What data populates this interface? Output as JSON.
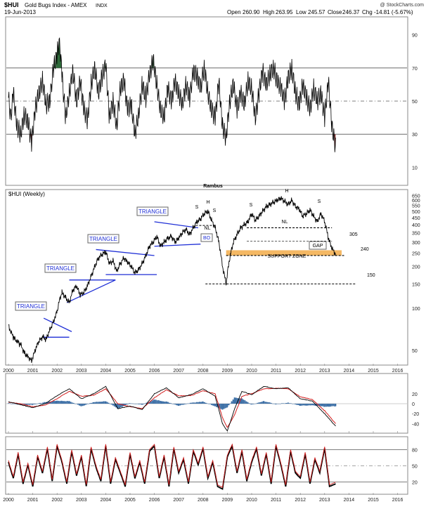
{
  "header": {
    "symbol": "$HUI",
    "name": "Gold Bugs Index - AMEX",
    "suffix": "INDX",
    "date": "19-Jun-2013",
    "watermark": "@ StockCharts.com",
    "open_label": "Open",
    "open": "260.90",
    "high_label": "High",
    "high": "263.95",
    "low_label": "Low",
    "low": "245.57",
    "close_label": "Close",
    "close": "246.37",
    "chg_label": "Chg",
    "chg": "-14.81 (-5.67%)"
  },
  "colors": {
    "price": "#000000",
    "pattern": "#1f2fd6",
    "support": "#f0a030",
    "macd_signal": "#d21f1f",
    "histogram": "#3b6ea5",
    "overbought_fill": "#2e6b3a",
    "oversold_fill": "#8b3a3a",
    "panel_border": "#8a8a8a",
    "ref_line": "#555555"
  },
  "chart_data": [
    {
      "type": "line",
      "panel": "RSI",
      "title": "",
      "ylim": [
        0,
        100
      ],
      "yticks": [
        10,
        30,
        50,
        70,
        90
      ],
      "ref_lines": [
        30,
        50,
        70
      ],
      "x_start": 2000.0,
      "x_end": 2013.45,
      "series": [
        {
          "x": [
            2000.0,
            2000.1,
            2000.2,
            2000.35,
            2000.5,
            2000.65,
            2000.8,
            2000.95,
            2001.1,
            2001.25,
            2001.4,
            2001.55,
            2001.7,
            2001.85,
            2002.0,
            2002.1,
            2002.2,
            2002.35,
            2002.5,
            2002.65,
            2002.8,
            2002.95,
            2003.1,
            2003.25,
            2003.4,
            2003.55,
            2003.7,
            2003.85,
            2004.0,
            2004.15,
            2004.3,
            2004.45,
            2004.6,
            2004.75,
            2004.9,
            2005.05,
            2005.2,
            2005.35,
            2005.5,
            2005.65,
            2005.8,
            2005.95,
            2006.1,
            2006.25,
            2006.4,
            2006.55,
            2006.7,
            2006.85,
            2007.0,
            2007.15,
            2007.3,
            2007.45,
            2007.6,
            2007.75,
            2007.9,
            2008.05,
            2008.2,
            2008.35,
            2008.5,
            2008.65,
            2008.8,
            2008.95,
            2009.1,
            2009.25,
            2009.4,
            2009.55,
            2009.7,
            2009.85,
            2010.0,
            2010.15,
            2010.3,
            2010.45,
            2010.6,
            2010.75,
            2010.9,
            2011.05,
            2011.2,
            2011.35,
            2011.5,
            2011.65,
            2011.8,
            2011.95,
            2012.1,
            2012.25,
            2012.4,
            2012.55,
            2012.7,
            2012.85,
            2013.0,
            2013.15,
            2013.3,
            2013.45
          ],
          "y": [
            52,
            40,
            55,
            35,
            30,
            42,
            38,
            25,
            45,
            55,
            62,
            48,
            50,
            70,
            78,
            88,
            66,
            40,
            55,
            68,
            50,
            62,
            45,
            38,
            60,
            70,
            55,
            65,
            72,
            40,
            50,
            35,
            58,
            62,
            45,
            48,
            30,
            42,
            60,
            52,
            66,
            75,
            60,
            45,
            40,
            58,
            50,
            62,
            55,
            48,
            60,
            52,
            68,
            65,
            58,
            70,
            55,
            45,
            40,
            62,
            35,
            28,
            50,
            60,
            45,
            55,
            48,
            62,
            58,
            40,
            55,
            68,
            60,
            66,
            70,
            62,
            58,
            50,
            64,
            70,
            55,
            48,
            60,
            52,
            45,
            58,
            50,
            55,
            40,
            62,
            35,
            22
          ]
        }
      ]
    },
    {
      "type": "line",
      "panel": "Price",
      "title": "$HUI (Weekly)",
      "yscale": "log",
      "ylim": [
        40,
        660
      ],
      "yticks": [
        50,
        100,
        150,
        200,
        250,
        300,
        350,
        400,
        450,
        500,
        550,
        600,
        650
      ],
      "x_start": 2000.0,
      "x_end": 2013.45,
      "xticks": [
        "2000",
        "2001",
        "2002",
        "2003",
        "2004",
        "2005",
        "2006",
        "2007",
        "2008",
        "2009",
        "2010",
        "2011",
        "2012",
        "2013",
        "2014",
        "2015",
        "2016"
      ],
      "series": [
        {
          "name": "HUI",
          "x": [
            2000.0,
            2000.1,
            2000.2,
            2000.35,
            2000.5,
            2000.65,
            2000.8,
            2000.95,
            2001.1,
            2001.25,
            2001.4,
            2001.55,
            2001.7,
            2001.85,
            2002.0,
            2002.1,
            2002.2,
            2002.35,
            2002.5,
            2002.65,
            2002.8,
            2002.95,
            2003.1,
            2003.25,
            2003.4,
            2003.55,
            2003.7,
            2003.85,
            2004.0,
            2004.15,
            2004.3,
            2004.45,
            2004.6,
            2004.75,
            2004.9,
            2005.05,
            2005.2,
            2005.35,
            2005.5,
            2005.65,
            2005.8,
            2005.95,
            2006.1,
            2006.25,
            2006.4,
            2006.55,
            2006.7,
            2006.85,
            2007.0,
            2007.15,
            2007.3,
            2007.45,
            2007.6,
            2007.75,
            2007.9,
            2008.05,
            2008.2,
            2008.35,
            2008.5,
            2008.65,
            2008.8,
            2008.95,
            2009.1,
            2009.25,
            2009.4,
            2009.55,
            2009.7,
            2009.85,
            2010.0,
            2010.15,
            2010.3,
            2010.45,
            2010.6,
            2010.75,
            2010.9,
            2011.05,
            2011.2,
            2011.35,
            2011.5,
            2011.65,
            2011.8,
            2011.95,
            2012.1,
            2012.25,
            2012.4,
            2012.55,
            2012.7,
            2012.85,
            2013.0,
            2013.15,
            2013.3,
            2013.45
          ],
          "y": [
            75,
            68,
            62,
            58,
            55,
            48,
            45,
            42,
            50,
            58,
            62,
            60,
            70,
            80,
            95,
            115,
            130,
            120,
            110,
            135,
            145,
            125,
            130,
            145,
            170,
            200,
            230,
            245,
            255,
            210,
            220,
            185,
            210,
            230,
            215,
            200,
            180,
            190,
            210,
            240,
            280,
            300,
            330,
            280,
            300,
            320,
            330,
            300,
            320,
            350,
            370,
            340,
            380,
            420,
            440,
            480,
            500,
            430,
            380,
            300,
            200,
            150,
            230,
            300,
            340,
            380,
            400,
            420,
            480,
            430,
            460,
            500,
            540,
            560,
            580,
            600,
            620,
            590,
            560,
            600,
            540,
            520,
            460,
            480,
            510,
            460,
            420,
            480,
            420,
            320,
            270,
            246
          ]
        }
      ],
      "annotations": [
        {
          "text": "TRIANGLE",
          "kind": "box"
        },
        {
          "text": "TRIANGLE",
          "kind": "box"
        },
        {
          "text": "TRIANGLE",
          "kind": "box"
        },
        {
          "text": "TRIANGLE",
          "kind": "box"
        },
        {
          "text": "H",
          "kind": "label"
        },
        {
          "text": "S",
          "kind": "label"
        },
        {
          "text": "S",
          "kind": "label"
        },
        {
          "text": "NL",
          "kind": "label"
        },
        {
          "text": "BO",
          "kind": "box"
        },
        {
          "text": "S",
          "kind": "label"
        },
        {
          "text": "H",
          "kind": "label"
        },
        {
          "text": "S",
          "kind": "label"
        },
        {
          "text": "NL",
          "kind": "label"
        },
        {
          "text": "305",
          "kind": "label"
        },
        {
          "text": "GAP",
          "kind": "box"
        },
        {
          "text": "240",
          "kind": "label"
        },
        {
          "text": "SUPPORT ZONE",
          "kind": "label"
        },
        {
          "text": "150",
          "kind": "label"
        },
        {
          "text": "Rambus",
          "kind": "label"
        }
      ],
      "levels": [
        {
          "value": 380,
          "label": "NL"
        },
        {
          "value": 305,
          "label": "305"
        },
        {
          "value": 240,
          "label": "240"
        },
        {
          "value": 150,
          "label": "150"
        }
      ]
    },
    {
      "type": "line",
      "panel": "MACD",
      "title": "",
      "ylim": [
        -55,
        55
      ],
      "yticks": [
        20,
        0,
        -20,
        -40
      ],
      "x_start": 2000.0,
      "x_end": 2013.45,
      "series": [
        {
          "x": [
            2000.0,
            2000.5,
            2001.0,
            2001.5,
            2002.0,
            2002.5,
            2003.0,
            2003.5,
            2004.0,
            2004.5,
            2005.0,
            2005.5,
            2006.0,
            2006.5,
            2007.0,
            2007.5,
            2008.0,
            2008.5,
            2008.8,
            2009.0,
            2009.3,
            2009.6,
            2010.0,
            2010.5,
            2011.0,
            2011.5,
            2012.0,
            2012.5,
            2013.0,
            2013.45
          ],
          "y": [
            4,
            -2,
            -8,
            0,
            16,
            30,
            10,
            20,
            35,
            -10,
            -5,
            -12,
            20,
            32,
            12,
            18,
            30,
            15,
            -40,
            -55,
            -10,
            25,
            18,
            35,
            30,
            32,
            10,
            5,
            -20,
            -45
          ]
        },
        {
          "x": [
            2000.0,
            2000.5,
            2001.0,
            2001.5,
            2002.0,
            2002.5,
            2003.0,
            2003.5,
            2004.0,
            2004.5,
            2005.0,
            2005.5,
            2006.0,
            2006.5,
            2007.0,
            2007.5,
            2008.0,
            2008.5,
            2008.8,
            2009.0,
            2009.3,
            2009.6,
            2010.0,
            2010.5,
            2011.0,
            2011.5,
            2012.0,
            2012.5,
            2013.0,
            2013.45
          ],
          "y": [
            3,
            0,
            -6,
            -3,
            10,
            25,
            15,
            17,
            30,
            0,
            -6,
            -10,
            12,
            28,
            16,
            16,
            26,
            20,
            -28,
            -48,
            -22,
            15,
            20,
            30,
            31,
            30,
            14,
            8,
            -14,
            -40
          ]
        }
      ],
      "histogram": {
        "x": [
          2000.0,
          2000.5,
          2001.0,
          2001.5,
          2002.0,
          2002.5,
          2003.0,
          2003.5,
          2004.0,
          2004.5,
          2005.0,
          2005.5,
          2006.0,
          2006.5,
          2007.0,
          2007.5,
          2008.0,
          2008.5,
          2008.8,
          2009.0,
          2009.3,
          2009.6,
          2010.0,
          2010.5,
          2011.0,
          2011.5,
          2012.0,
          2012.5,
          2013.0,
          2013.45
        ],
        "y": [
          1,
          -2,
          -2,
          3,
          6,
          5,
          -5,
          3,
          5,
          -10,
          1,
          -2,
          8,
          4,
          -4,
          2,
          4,
          -5,
          -12,
          -7,
          12,
          10,
          -2,
          5,
          -1,
          2,
          -4,
          -3,
          -6,
          -5
        ]
      }
    },
    {
      "type": "line",
      "panel": "Stochastic",
      "title": "",
      "ylim": [
        0,
        100
      ],
      "yticks": [
        20,
        50,
        80
      ],
      "ref_lines": [
        20,
        50,
        80
      ],
      "x_start": 2000.0,
      "x_end": 2013.45,
      "series": [
        {
          "x": [
            2000.0,
            2000.2,
            2000.4,
            2000.6,
            2000.8,
            2001.0,
            2001.2,
            2001.4,
            2001.6,
            2001.8,
            2002.0,
            2002.2,
            2002.4,
            2002.6,
            2002.8,
            2003.0,
            2003.2,
            2003.4,
            2003.6,
            2003.8,
            2004.0,
            2004.2,
            2004.4,
            2004.6,
            2004.8,
            2005.0,
            2005.2,
            2005.4,
            2005.6,
            2005.8,
            2006.0,
            2006.2,
            2006.4,
            2006.6,
            2006.8,
            2007.0,
            2007.2,
            2007.4,
            2007.6,
            2007.8,
            2008.0,
            2008.2,
            2008.4,
            2008.6,
            2008.8,
            2009.0,
            2009.2,
            2009.4,
            2009.6,
            2009.8,
            2010.0,
            2010.2,
            2010.4,
            2010.6,
            2010.8,
            2011.0,
            2011.2,
            2011.4,
            2011.6,
            2011.8,
            2012.0,
            2012.2,
            2012.4,
            2012.6,
            2012.8,
            2013.0,
            2013.2,
            2013.45
          ],
          "y": [
            60,
            30,
            75,
            20,
            55,
            15,
            70,
            40,
            85,
            25,
            90,
            60,
            20,
            80,
            35,
            70,
            15,
            85,
            50,
            25,
            90,
            20,
            65,
            40,
            15,
            75,
            30,
            60,
            20,
            80,
            90,
            30,
            70,
            15,
            85,
            40,
            65,
            20,
            80,
            55,
            85,
            30,
            60,
            15,
            10,
            70,
            90,
            40,
            80,
            25,
            60,
            85,
            35,
            75,
            20,
            90,
            55,
            15,
            80,
            40,
            30,
            75,
            20,
            65,
            40,
            85,
            15,
            20
          ]
        }
      ]
    }
  ]
}
